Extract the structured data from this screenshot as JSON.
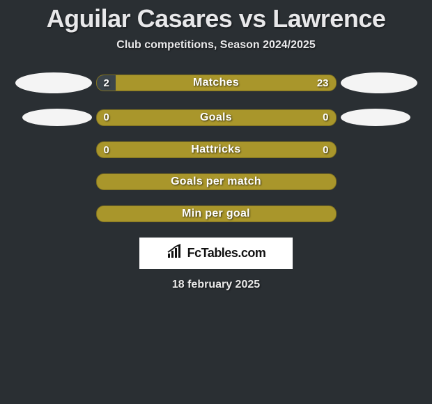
{
  "header": {
    "title": "Aguilar Casares vs Lawrence",
    "subtitle": "Club competitions, Season 2024/2025"
  },
  "colors": {
    "page_bg": "#2a2f33",
    "bar_base": "#a9962b",
    "bar_border": "#7e7020",
    "ellipse": "#f4f4f4",
    "text": "#eaeaea",
    "logo_bg": "#ffffff",
    "logo_text": "#111111"
  },
  "bars": [
    {
      "label": "Matches",
      "left_val": "2",
      "right_val": "23",
      "left_pct": 8,
      "right_pct": 92,
      "left_color": "#3b444a",
      "right_color": "#a9962b",
      "show_ellipses": true,
      "ellipse_size": "large"
    },
    {
      "label": "Goals",
      "left_val": "0",
      "right_val": "0",
      "left_pct": 0,
      "right_pct": 0,
      "left_color": "#a9962b",
      "right_color": "#a9962b",
      "show_ellipses": true,
      "ellipse_size": "small"
    },
    {
      "label": "Hattricks",
      "left_val": "0",
      "right_val": "0",
      "left_pct": 0,
      "right_pct": 0,
      "left_color": "#a9962b",
      "right_color": "#a9962b",
      "show_ellipses": false
    },
    {
      "label": "Goals per match",
      "left_val": "",
      "right_val": "",
      "left_pct": 0,
      "right_pct": 0,
      "left_color": "#a9962b",
      "right_color": "#a9962b",
      "show_ellipses": false
    },
    {
      "label": "Min per goal",
      "left_val": "",
      "right_val": "",
      "left_pct": 0,
      "right_pct": 0,
      "left_color": "#a9962b",
      "right_color": "#a9962b",
      "show_ellipses": false
    }
  ],
  "footer": {
    "logo_text": "FcTables.com",
    "date": "18 february 2025"
  }
}
